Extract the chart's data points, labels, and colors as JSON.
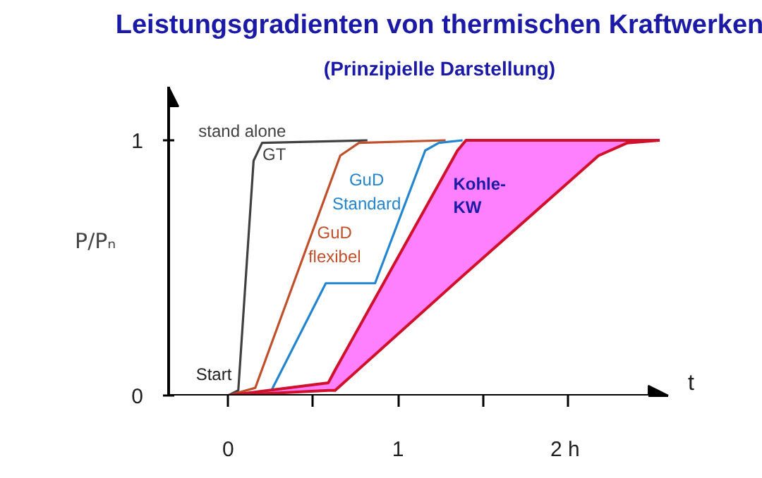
{
  "chart_data": {
    "type": "line",
    "title": "Leistungsgradienten von thermischen Kraftwerken",
    "subtitle": "(Prinzipielle Darstellung)",
    "xlabel": "t",
    "ylabel": "P/Pₙ",
    "xlim": [
      -0.35,
      2.59
    ],
    "ylim": [
      0,
      1.21
    ],
    "xticks": [
      0,
      {
        "value": 0.5,
        "label": null
      },
      1,
      {
        "value": 1.5,
        "label": null
      },
      {
        "value": 2,
        "label": "2  h"
      }
    ],
    "yticks": [
      0,
      1
    ],
    "grid": false,
    "series": [
      {
        "name": "stand alone\nGT",
        "color": "#404040",
        "x": [
          0,
          0.06,
          0.15,
          0.2,
          0.82
        ],
        "values": [
          0,
          0.02,
          0.92,
          0.99,
          1
        ]
      },
      {
        "name": "GuD\nflexibel",
        "color": "#c0502b",
        "x": [
          0,
          0.16,
          0.66,
          0.77,
          1.28
        ],
        "values": [
          0,
          0.03,
          0.94,
          0.99,
          1
        ]
      },
      {
        "name": "GuD\nStandard",
        "color": "#2385d0",
        "x": [
          0,
          0.24,
          0.575,
          0.865,
          1.16,
          1.24,
          1.38
        ],
        "values": [
          0,
          0,
          0.44,
          0.44,
          0.96,
          0.99,
          1
        ]
      },
      {
        "name": "Kohle-\nKW",
        "color": "#d0112b",
        "x": [
          0,
          0.59,
          0.63,
          1.35,
          1.4,
          2.18,
          2.35,
          2.54
        ],
        "values": [
          0,
          0.05,
          0.1,
          0.96,
          1,
          1,
          1,
          1
        ],
        "lower": [
          0,
          0.02,
          0.02,
          0.45,
          0.48,
          0.94,
          0.99,
          1
        ],
        "upper": [
          0,
          0.05,
          0.1,
          0.96,
          1,
          1,
          1,
          1
        ]
      }
    ],
    "annotations": [
      "Start"
    ]
  }
}
